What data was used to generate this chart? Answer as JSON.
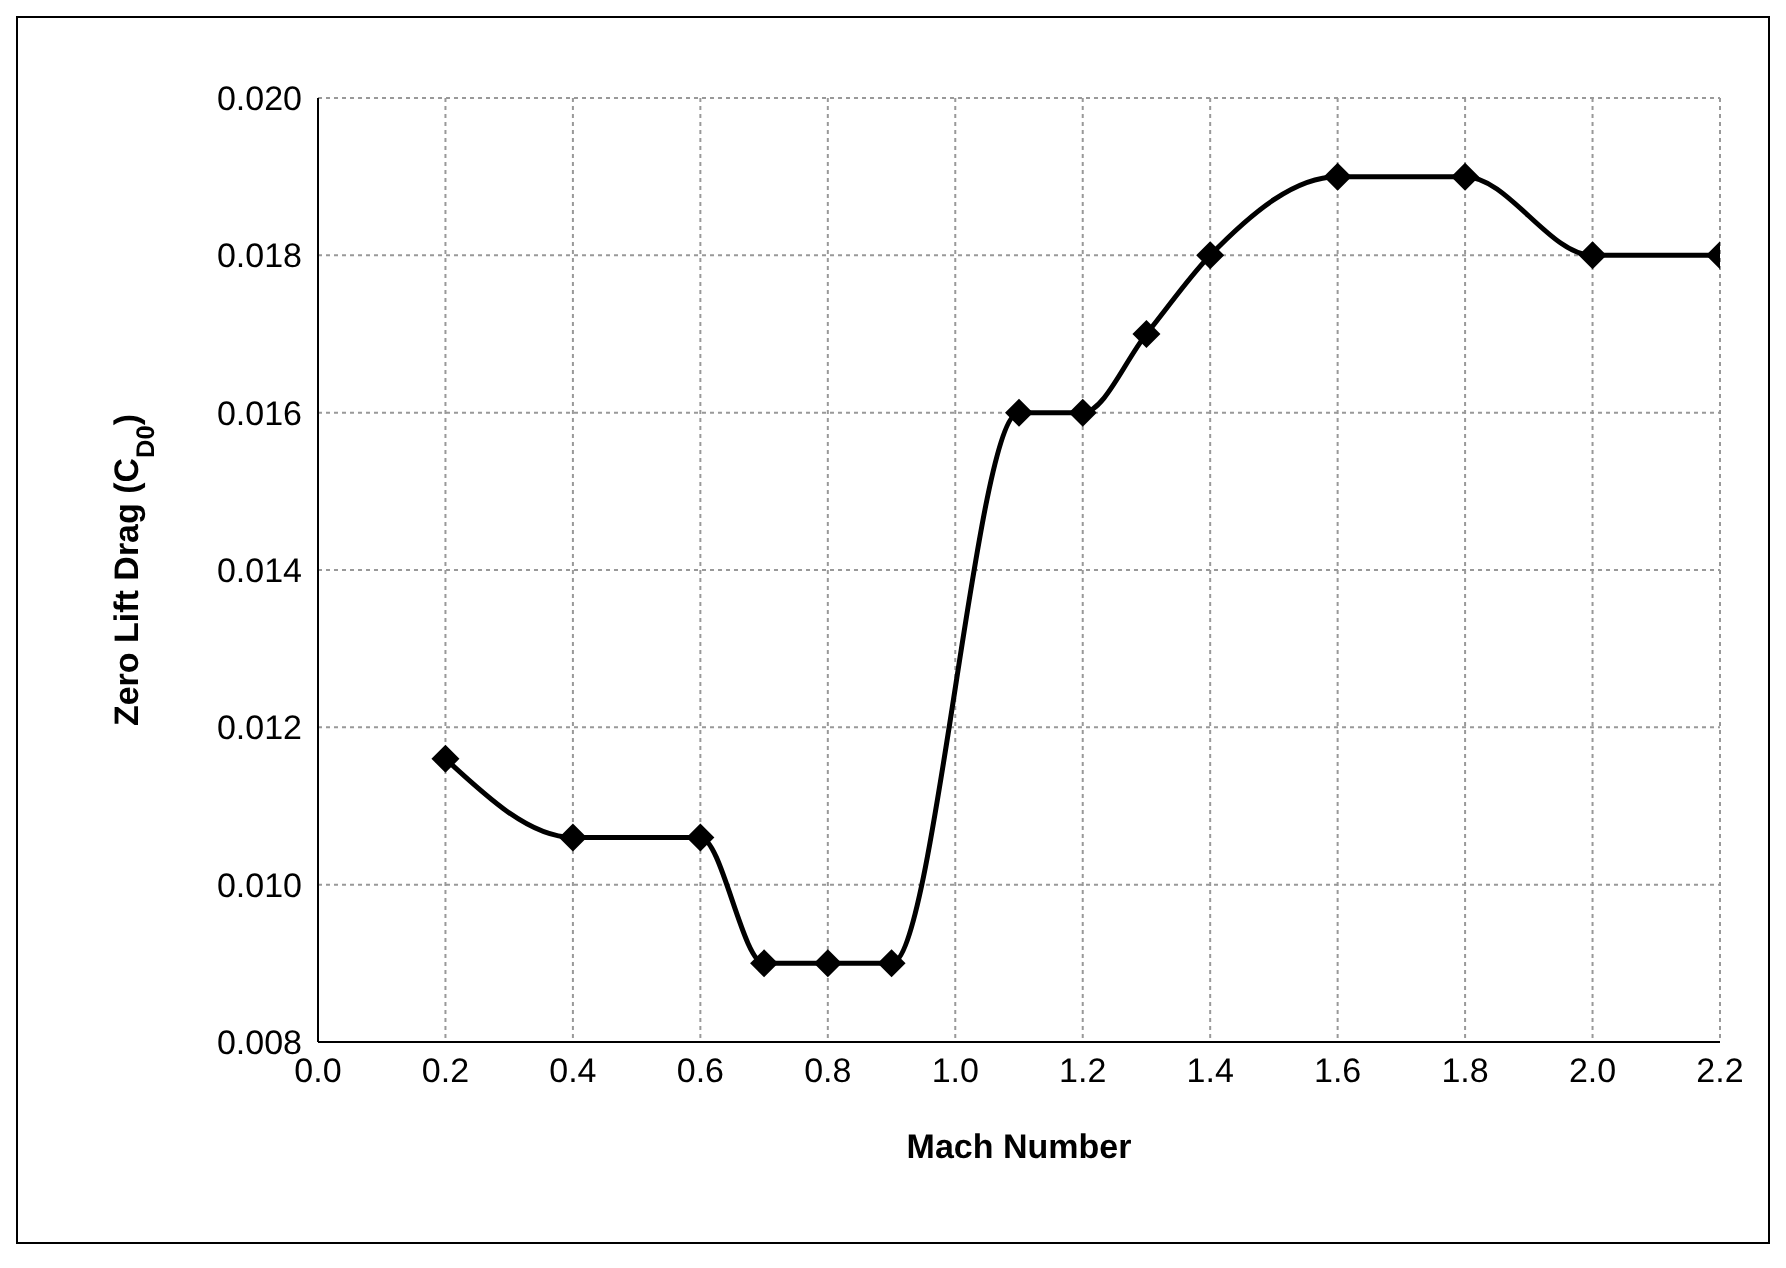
{
  "chart_data": {
    "type": "line",
    "xlabel": "Mach Number",
    "ylabel": "Zero Lift Drag (C$_{D0}$)",
    "x": [
      0.2,
      0.4,
      0.6,
      0.7,
      0.8,
      0.9,
      1.1,
      1.2,
      1.3,
      1.4,
      1.6,
      1.8,
      2.0,
      2.2
    ],
    "series": [
      {
        "color": "#000000",
        "values": [
          0.0116,
          0.0106,
          0.0106,
          0.009,
          0.009,
          0.009,
          0.016,
          0.016,
          0.017,
          0.018,
          0.019,
          0.019,
          0.018,
          0.018
        ]
      }
    ],
    "xlim": [
      0,
      2.2
    ],
    "xticks": [
      {
        "value": 0,
        "label": "0.0"
      },
      {
        "value": 0.2,
        "label": "0.2"
      },
      {
        "value": 0.4,
        "label": "0.4"
      },
      {
        "value": 0.6,
        "label": "0.6"
      },
      {
        "value": 0.8,
        "label": "0.8"
      },
      {
        "value": 1,
        "label": "1.0"
      },
      {
        "value": 1.2,
        "label": "1.2"
      },
      {
        "value": 1.4,
        "label": "1.4"
      },
      {
        "value": 1.6,
        "label": "1.6"
      },
      {
        "value": 1.8,
        "label": "1.8"
      },
      {
        "value": 2,
        "label": "2.0"
      },
      {
        "value": 2.2,
        "label": "2.2"
      }
    ],
    "ylim": [
      0.008,
      0.02
    ],
    "yticks": [
      {
        "value": 0.008,
        "label": "0.008"
      },
      {
        "value": 0.01,
        "label": "0.010"
      },
      {
        "value": 0.012,
        "label": "0.012"
      },
      {
        "value": 0.014,
        "label": "0.014"
      },
      {
        "value": 0.016,
        "label": "0.016"
      },
      {
        "value": 0.018,
        "label": "0.018"
      },
      {
        "value": 0.02,
        "label": "0.020"
      }
    ],
    "grid": true,
    "marker": "diamond",
    "line_style": "solid"
  }
}
